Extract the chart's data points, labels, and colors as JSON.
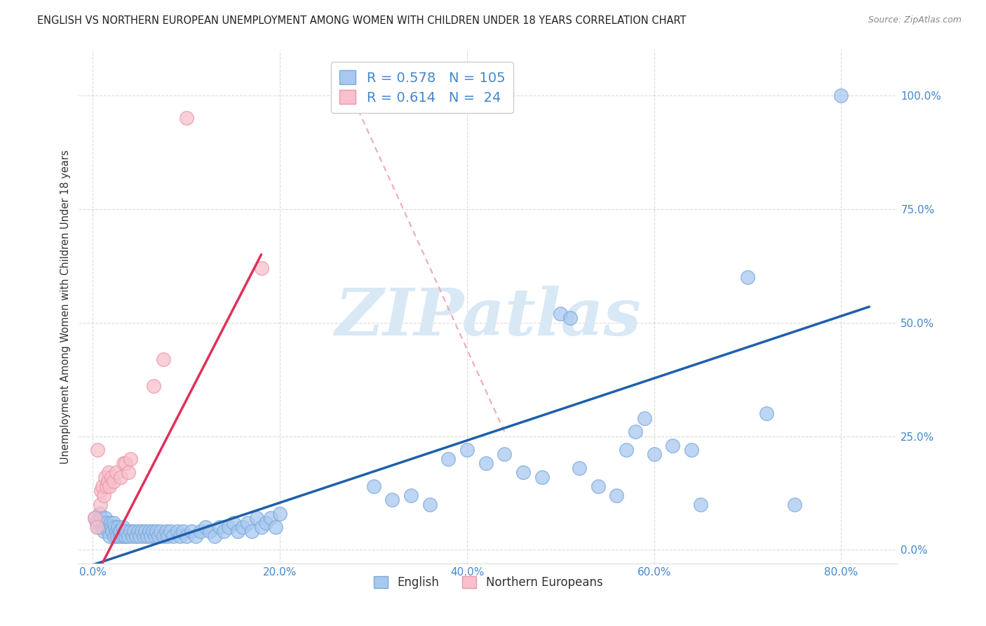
{
  "title": "ENGLISH VS NORTHERN EUROPEAN UNEMPLOYMENT AMONG WOMEN WITH CHILDREN UNDER 18 YEARS CORRELATION CHART",
  "source": "Source: ZipAtlas.com",
  "ylabel": "Unemployment Among Women with Children Under 18 years",
  "x_tick_labels": [
    "0.0%",
    "20.0%",
    "40.0%",
    "60.0%",
    "80.0%"
  ],
  "x_tick_values": [
    0.0,
    0.2,
    0.4,
    0.6,
    0.8
  ],
  "y_tick_labels": [
    "0.0%",
    "25.0%",
    "50.0%",
    "75.0%",
    "100.0%"
  ],
  "y_tick_values": [
    0.0,
    0.25,
    0.5,
    0.75,
    1.0
  ],
  "xlim": [
    -0.015,
    0.86
  ],
  "ylim": [
    -0.03,
    1.1
  ],
  "english_R": 0.578,
  "english_N": 105,
  "northern_R": 0.614,
  "northern_N": 24,
  "english_color": "#A8C8F0",
  "english_edge_color": "#7AAAD8",
  "northern_color": "#F8C0CC",
  "northern_edge_color": "#E898AA",
  "english_line_color": "#1E5FAA",
  "northern_line_color": "#E0305A",
  "northern_diag_color": "#F0A8B8",
  "title_color": "#222222",
  "source_color": "#888888",
  "label_color": "#4488CC",
  "background_color": "#FFFFFF",
  "grid_color": "#CCCCCC",
  "english_scatter": [
    [
      0.002,
      0.07
    ],
    [
      0.004,
      0.06
    ],
    [
      0.006,
      0.05
    ],
    [
      0.007,
      0.08
    ],
    [
      0.008,
      0.06
    ],
    [
      0.009,
      0.07
    ],
    [
      0.01,
      0.05
    ],
    [
      0.011,
      0.06
    ],
    [
      0.012,
      0.04
    ],
    [
      0.013,
      0.07
    ],
    [
      0.014,
      0.05
    ],
    [
      0.015,
      0.06
    ],
    [
      0.016,
      0.04
    ],
    [
      0.017,
      0.05
    ],
    [
      0.018,
      0.03
    ],
    [
      0.019,
      0.06
    ],
    [
      0.02,
      0.05
    ],
    [
      0.021,
      0.04
    ],
    [
      0.022,
      0.06
    ],
    [
      0.023,
      0.03
    ],
    [
      0.024,
      0.05
    ],
    [
      0.025,
      0.04
    ],
    [
      0.026,
      0.03
    ],
    [
      0.027,
      0.05
    ],
    [
      0.028,
      0.04
    ],
    [
      0.029,
      0.03
    ],
    [
      0.03,
      0.04
    ],
    [
      0.032,
      0.05
    ],
    [
      0.033,
      0.03
    ],
    [
      0.034,
      0.04
    ],
    [
      0.035,
      0.03
    ],
    [
      0.036,
      0.04
    ],
    [
      0.038,
      0.03
    ],
    [
      0.04,
      0.04
    ],
    [
      0.042,
      0.03
    ],
    [
      0.044,
      0.04
    ],
    [
      0.046,
      0.03
    ],
    [
      0.048,
      0.04
    ],
    [
      0.05,
      0.03
    ],
    [
      0.052,
      0.04
    ],
    [
      0.054,
      0.03
    ],
    [
      0.056,
      0.04
    ],
    [
      0.058,
      0.03
    ],
    [
      0.06,
      0.04
    ],
    [
      0.062,
      0.03
    ],
    [
      0.064,
      0.04
    ],
    [
      0.066,
      0.03
    ],
    [
      0.068,
      0.04
    ],
    [
      0.07,
      0.03
    ],
    [
      0.072,
      0.04
    ],
    [
      0.075,
      0.03
    ],
    [
      0.078,
      0.04
    ],
    [
      0.08,
      0.03
    ],
    [
      0.083,
      0.04
    ],
    [
      0.086,
      0.03
    ],
    [
      0.09,
      0.04
    ],
    [
      0.093,
      0.03
    ],
    [
      0.096,
      0.04
    ],
    [
      0.1,
      0.03
    ],
    [
      0.105,
      0.04
    ],
    [
      0.11,
      0.03
    ],
    [
      0.115,
      0.04
    ],
    [
      0.12,
      0.05
    ],
    [
      0.125,
      0.04
    ],
    [
      0.13,
      0.03
    ],
    [
      0.135,
      0.05
    ],
    [
      0.14,
      0.04
    ],
    [
      0.145,
      0.05
    ],
    [
      0.15,
      0.06
    ],
    [
      0.155,
      0.04
    ],
    [
      0.16,
      0.05
    ],
    [
      0.165,
      0.06
    ],
    [
      0.17,
      0.04
    ],
    [
      0.175,
      0.07
    ],
    [
      0.18,
      0.05
    ],
    [
      0.185,
      0.06
    ],
    [
      0.19,
      0.07
    ],
    [
      0.195,
      0.05
    ],
    [
      0.2,
      0.08
    ],
    [
      0.3,
      0.14
    ],
    [
      0.32,
      0.11
    ],
    [
      0.34,
      0.12
    ],
    [
      0.36,
      0.1
    ],
    [
      0.38,
      0.2
    ],
    [
      0.4,
      0.22
    ],
    [
      0.42,
      0.19
    ],
    [
      0.44,
      0.21
    ],
    [
      0.46,
      0.17
    ],
    [
      0.48,
      0.16
    ],
    [
      0.5,
      0.52
    ],
    [
      0.51,
      0.51
    ],
    [
      0.52,
      0.18
    ],
    [
      0.54,
      0.14
    ],
    [
      0.56,
      0.12
    ],
    [
      0.57,
      0.22
    ],
    [
      0.58,
      0.26
    ],
    [
      0.59,
      0.29
    ],
    [
      0.6,
      0.21
    ],
    [
      0.62,
      0.23
    ],
    [
      0.64,
      0.22
    ],
    [
      0.65,
      0.1
    ],
    [
      0.7,
      0.6
    ],
    [
      0.72,
      0.3
    ],
    [
      0.75,
      0.1
    ],
    [
      0.8,
      1.0
    ]
  ],
  "northern_scatter": [
    [
      0.002,
      0.07
    ],
    [
      0.004,
      0.05
    ],
    [
      0.005,
      0.22
    ],
    [
      0.008,
      0.1
    ],
    [
      0.009,
      0.13
    ],
    [
      0.01,
      0.14
    ],
    [
      0.012,
      0.12
    ],
    [
      0.013,
      0.16
    ],
    [
      0.015,
      0.14
    ],
    [
      0.016,
      0.15
    ],
    [
      0.017,
      0.17
    ],
    [
      0.018,
      0.14
    ],
    [
      0.02,
      0.16
    ],
    [
      0.022,
      0.15
    ],
    [
      0.025,
      0.17
    ],
    [
      0.03,
      0.16
    ],
    [
      0.033,
      0.19
    ],
    [
      0.035,
      0.19
    ],
    [
      0.038,
      0.17
    ],
    [
      0.04,
      0.2
    ],
    [
      0.065,
      0.36
    ],
    [
      0.075,
      0.42
    ],
    [
      0.1,
      0.95
    ],
    [
      0.18,
      0.62
    ]
  ],
  "english_line": [
    [
      -0.01,
      -0.04
    ],
    [
      0.83,
      0.535
    ]
  ],
  "northern_line": [
    [
      -0.01,
      -0.11
    ],
    [
      0.18,
      0.65
    ]
  ],
  "northern_diag_line": [
    [
      0.27,
      1.03
    ],
    [
      0.44,
      0.26
    ]
  ],
  "watermark": "ZIPatlas",
  "watermark_color": "#D8E8F5"
}
